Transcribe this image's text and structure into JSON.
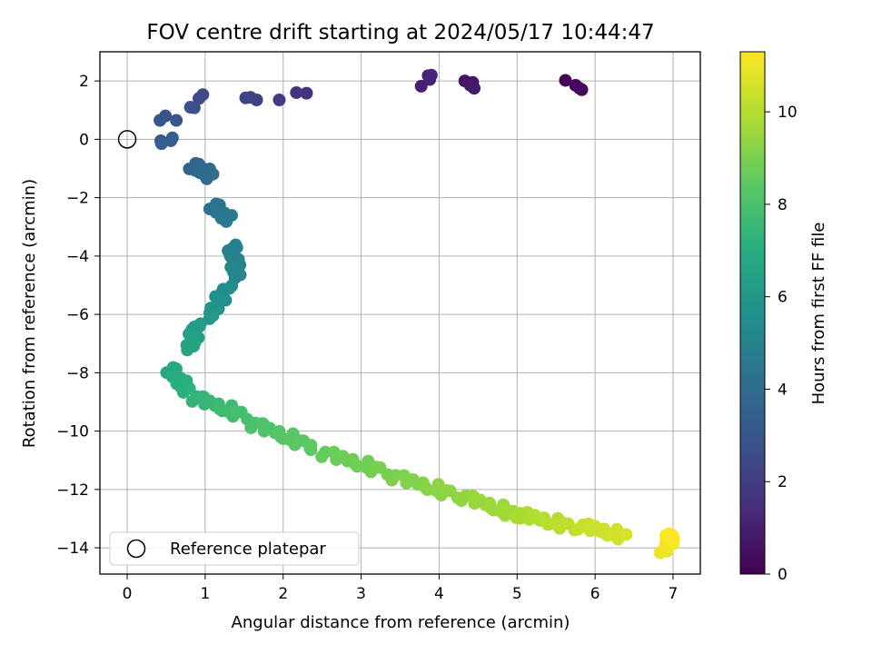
{
  "chart_data": {
    "type": "scatter",
    "title": "FOV centre drift starting at 2024/05/17 10:44:47",
    "xlabel": "Angular distance from reference (arcmin)",
    "ylabel": "Rotation from reference (arcmin)",
    "xlim": [
      -0.35,
      7.35
    ],
    "ylim": [
      -14.9,
      3.0
    ],
    "xticks": [
      0,
      1,
      2,
      3,
      4,
      5,
      6,
      7
    ],
    "yticks": [
      2,
      0,
      -2,
      -4,
      -6,
      -8,
      -10,
      -12,
      -14
    ],
    "grid": true,
    "colorbar": {
      "label": "Hours from first FF file",
      "colormap": "viridis",
      "range": [
        0,
        11.3
      ],
      "ticks": [
        0,
        2,
        4,
        6,
        8,
        10
      ]
    },
    "legend": {
      "placement": "lower-left",
      "entries": [
        "Reference platepar"
      ]
    },
    "reference_point": {
      "x": 0,
      "y": 0,
      "label": "Reference platepar"
    },
    "series": [
      {
        "x": [
          5.62,
          5.75,
          5.83,
          5.8,
          4.33,
          4.43,
          4.45,
          4.4,
          3.77,
          3.86,
          3.9,
          3.88,
          2.3,
          2.17,
          1.95,
          1.66,
          1.58,
          1.52,
          0.97,
          0.92,
          0.86,
          0.81,
          0.49,
          0.42,
          0.63,
          0.43,
          0.58,
          0.44,
          0.56
        ],
        "y": [
          2.02,
          1.85,
          1.7,
          1.75,
          2.0,
          1.95,
          1.75,
          1.85,
          1.82,
          2.18,
          2.2,
          2.05,
          1.58,
          1.6,
          1.35,
          1.35,
          1.44,
          1.42,
          1.53,
          1.4,
          1.08,
          1.1,
          0.8,
          0.65,
          0.65,
          -0.05,
          0.05,
          -0.15,
          -0.05
        ],
        "hours": [
          0.1,
          0.2,
          0.3,
          0.35,
          0.6,
          0.7,
          0.8,
          0.75,
          1.0,
          1.1,
          1.2,
          1.15,
          1.6,
          1.7,
          1.9,
          2.1,
          2.2,
          2.3,
          2.5,
          2.6,
          2.7,
          2.8,
          2.9,
          3.0,
          3.05,
          3.2,
          3.3,
          3.35,
          3.4
        ],
        "dense_segments": [
          {
            "x_start": 0.84,
            "y_start": -0.85,
            "x_end": 1.05,
            "y_end": -1.25,
            "hours_start": 3.5,
            "hours_end": 4.0,
            "count": 14
          },
          {
            "x_start": 1.1,
            "y_start": -2.2,
            "x_end": 1.3,
            "y_end": -2.8,
            "hours_start": 4.2,
            "hours_end": 4.6,
            "count": 12
          },
          {
            "x_start": 1.35,
            "y_start": -3.6,
            "x_end": 1.4,
            "y_end": -4.7,
            "hours_start": 4.8,
            "hours_end": 5.2,
            "count": 14
          },
          {
            "x_start": 1.3,
            "y_start": -5.0,
            "x_end": 1.05,
            "y_end": -6.1,
            "hours_start": 5.3,
            "hours_end": 6.0,
            "count": 14
          },
          {
            "x_start": 0.9,
            "y_start": -6.3,
            "x_end": 0.8,
            "y_end": -7.2,
            "hours_start": 6.1,
            "hours_end": 6.6,
            "count": 12
          },
          {
            "x_start": 0.55,
            "y_start": -7.8,
            "x_end": 0.75,
            "y_end": -8.6,
            "hours_start": 6.7,
            "hours_end": 7.2,
            "count": 14
          },
          {
            "x_start": 0.85,
            "y_start": -8.8,
            "x_end": 1.5,
            "y_end": -9.5,
            "hours_start": 7.3,
            "hours_end": 7.9,
            "count": 16
          },
          {
            "x_start": 1.6,
            "y_start": -9.7,
            "x_end": 2.4,
            "y_end": -10.6,
            "hours_start": 8.0,
            "hours_end": 8.5,
            "count": 18
          },
          {
            "x_start": 2.5,
            "y_start": -10.7,
            "x_end": 3.3,
            "y_end": -11.4,
            "hours_start": 8.6,
            "hours_end": 8.95,
            "count": 16
          },
          {
            "x_start": 3.4,
            "y_start": -11.5,
            "x_end": 4.2,
            "y_end": -12.2,
            "hours_start": 9.0,
            "hours_end": 9.35,
            "count": 16
          },
          {
            "x_start": 4.3,
            "y_start": -12.2,
            "x_end": 5.0,
            "y_end": -12.9,
            "hours_start": 9.4,
            "hours_end": 9.75,
            "count": 16
          },
          {
            "x_start": 5.0,
            "y_start": -12.8,
            "x_end": 5.7,
            "y_end": -13.3,
            "hours_start": 9.8,
            "hours_end": 10.2,
            "count": 16
          },
          {
            "x_start": 5.8,
            "y_start": -13.2,
            "x_end": 6.35,
            "y_end": -13.6,
            "hours_start": 10.3,
            "hours_end": 10.6,
            "count": 14
          },
          {
            "x_start": 6.88,
            "y_start": -14.1,
            "x_end": 7.0,
            "y_end": -13.5,
            "hours_start": 11.0,
            "hours_end": 11.3,
            "count": 10
          }
        ]
      }
    ]
  }
}
